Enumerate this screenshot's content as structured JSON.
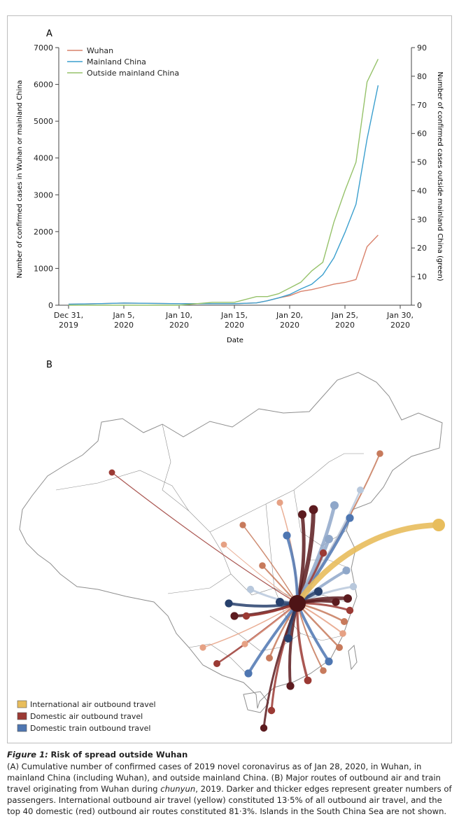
{
  "panel_a": {
    "label": "A",
    "xlabel": "Date",
    "ylabel_left": "Number of confirmed cases in Wuhan or mainland China",
    "ylabel_right": "Number of confirmed cases outside mainland China (green)",
    "legend": [
      {
        "name": "Wuhan",
        "color": "#d9826c"
      },
      {
        "name": "Mainland China",
        "color": "#3b9fce"
      },
      {
        "name": "Outside mainland China",
        "color": "#96c26a"
      }
    ]
  },
  "panel_b": {
    "label": "B",
    "legend": [
      {
        "name": "International air outbound travel",
        "color": "#e8bd5c"
      },
      {
        "name": "Domestic air outbound travel",
        "color": "#9b3a34"
      },
      {
        "name": "Domestic train outbound travel",
        "color": "#4e76b1"
      }
    ]
  },
  "caption": {
    "figure_label": "Figure 1:",
    "figure_title": "Risk of spread outside Wuhan",
    "text_1": "(A) Cumulative number of confirmed cases of 2019 novel coronavirus as of Jan 28, 2020, in Wuhan, in mainland China (including Wuhan), and outside mainland China. (B) Major routes of outbound air and train travel originating from Wuhan during",
    "text_italic": "chunyun",
    "text_2": ", 2019. Darker and thicker edges represent greater numbers of passengers. International outbound air travel (yellow) constituted 13·5% of all outbound air travel, and the top 40 domestic (red) outbound air routes constituted 81·3%. Islands in the South China Sea are not shown."
  },
  "chart_data": [
    {
      "type": "line",
      "title": "",
      "xlabel": "Date",
      "ylabel": "Number of confirmed cases in Wuhan or mainland China",
      "y2label": "Number of confirmed cases outside mainland China (green)",
      "x_ticks": [
        "Dec 31, 2019",
        "Jan 5, 2020",
        "Jan 10, 2020",
        "Jan 15, 2020",
        "Jan 20, 2020",
        "Jan 25, 2020",
        "Jan 30, 2020"
      ],
      "x_tick_lines": [
        [
          "Dec 31,",
          "2019"
        ],
        [
          "Jan 5,",
          "2020"
        ],
        [
          "Jan 10,",
          "2020"
        ],
        [
          "Jan 15,",
          "2020"
        ],
        [
          "Jan 20,",
          "2020"
        ],
        [
          "Jan 25,",
          "2020"
        ],
        [
          "Jan 30,",
          "2020"
        ]
      ],
      "xlim": [
        "2019-12-31",
        "2020-01-30"
      ],
      "ylim": [
        0,
        7000
      ],
      "y_ticks": [
        0,
        1000,
        2000,
        3000,
        4000,
        5000,
        6000,
        7000
      ],
      "y2lim": [
        0,
        90
      ],
      "y2_ticks": [
        0,
        10,
        20,
        30,
        40,
        50,
        60,
        70,
        80,
        90
      ],
      "grid": false,
      "legend_position": "top-left",
      "series": [
        {
          "name": "Wuhan",
          "axis": "left",
          "color": "#d9826c",
          "x": [
            "2019-12-31",
            "2020-01-03",
            "2020-01-05",
            "2020-01-10",
            "2020-01-12",
            "2020-01-15",
            "2020-01-17",
            "2020-01-18",
            "2020-01-19",
            "2020-01-20",
            "2020-01-21",
            "2020-01-22",
            "2020-01-23",
            "2020-01-24",
            "2020-01-25",
            "2020-01-26",
            "2020-01-27",
            "2020-01-28"
          ],
          "values": [
            27,
            44,
            59,
            41,
            41,
            41,
            62,
            121,
            198,
            258,
            375,
            425,
            495,
            572,
            618,
            698,
            1590,
            1905
          ]
        },
        {
          "name": "Mainland China",
          "axis": "left",
          "color": "#3b9fce",
          "x": [
            "2019-12-31",
            "2020-01-03",
            "2020-01-05",
            "2020-01-10",
            "2020-01-12",
            "2020-01-15",
            "2020-01-17",
            "2020-01-18",
            "2020-01-19",
            "2020-01-20",
            "2020-01-21",
            "2020-01-22",
            "2020-01-23",
            "2020-01-24",
            "2020-01-25",
            "2020-01-26",
            "2020-01-27",
            "2020-01-28"
          ],
          "values": [
            27,
            44,
            59,
            41,
            41,
            41,
            62,
            121,
            198,
            291,
            440,
            571,
            830,
            1287,
            1975,
            2744,
            4515,
            5974
          ]
        },
        {
          "name": "Outside mainland China",
          "axis": "right",
          "color": "#96c26a",
          "x": [
            "2019-12-31",
            "2020-01-10",
            "2020-01-13",
            "2020-01-15",
            "2020-01-17",
            "2020-01-18",
            "2020-01-19",
            "2020-01-20",
            "2020-01-21",
            "2020-01-22",
            "2020-01-23",
            "2020-01-24",
            "2020-01-25",
            "2020-01-26",
            "2020-01-27",
            "2020-01-28"
          ],
          "values": [
            0,
            0,
            1,
            1,
            3,
            3,
            4,
            6,
            8,
            12,
            15,
            29,
            40,
            50,
            78,
            86
          ]
        }
      ]
    },
    {
      "type": "map",
      "title": "",
      "note": "Outbound travel routes from Wuhan",
      "legend_position": "bottom-left",
      "series": [
        {
          "name": "International air outbound travel",
          "color": "#e8bd5c"
        },
        {
          "name": "Domestic air outbound travel",
          "color": "#9b3a34"
        },
        {
          "name": "Domestic train outbound travel",
          "color": "#4e76b1"
        }
      ]
    }
  ]
}
